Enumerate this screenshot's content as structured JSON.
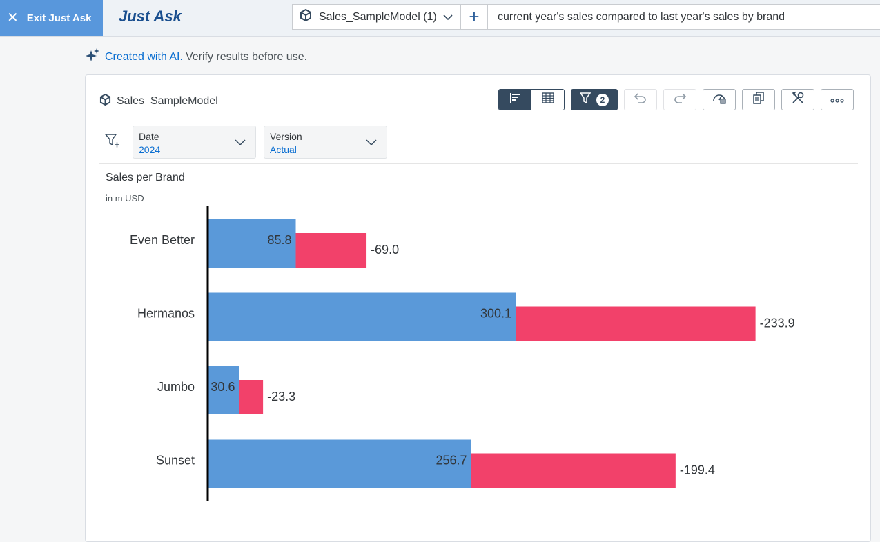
{
  "topbar": {
    "exit_label": "Exit Just Ask",
    "app_title": "Just Ask",
    "model_select": "Sales_SampleModel (1)",
    "query": "current year's sales compared to last year's sales by brand"
  },
  "ai_note": {
    "link": "Created with AI.",
    "text": "Verify results before use."
  },
  "card": {
    "model_name": "Sales_SampleModel",
    "filter_count": "2",
    "filters": [
      {
        "label": "Date",
        "value": "2024"
      },
      {
        "label": "Version",
        "value": "Actual"
      }
    ]
  },
  "colors": {
    "current": "#5a99d9",
    "delta": "#f2416a",
    "accent": "#354a5f",
    "exit": "#5897dc"
  },
  "chart_data": {
    "type": "bar",
    "title": "Sales per Brand",
    "subtitle": "in m USD",
    "categories": [
      "Even Better",
      "Hermanos",
      "Jumbo",
      "Sunset"
    ],
    "series": [
      {
        "values": [
          85.8,
          300.1,
          30.6,
          256.7
        ]
      },
      {
        "values": [
          -69.0,
          -233.9,
          -23.3,
          -199.4
        ]
      }
    ],
    "value_labels": {
      "current": [
        "85.8",
        "300.1",
        "30.6",
        "256.7"
      ],
      "delta": [
        "-69.0",
        "-233.9",
        "-23.3",
        "-199.4"
      ]
    },
    "orientation": "horizontal",
    "legend": "none",
    "grid": false
  }
}
